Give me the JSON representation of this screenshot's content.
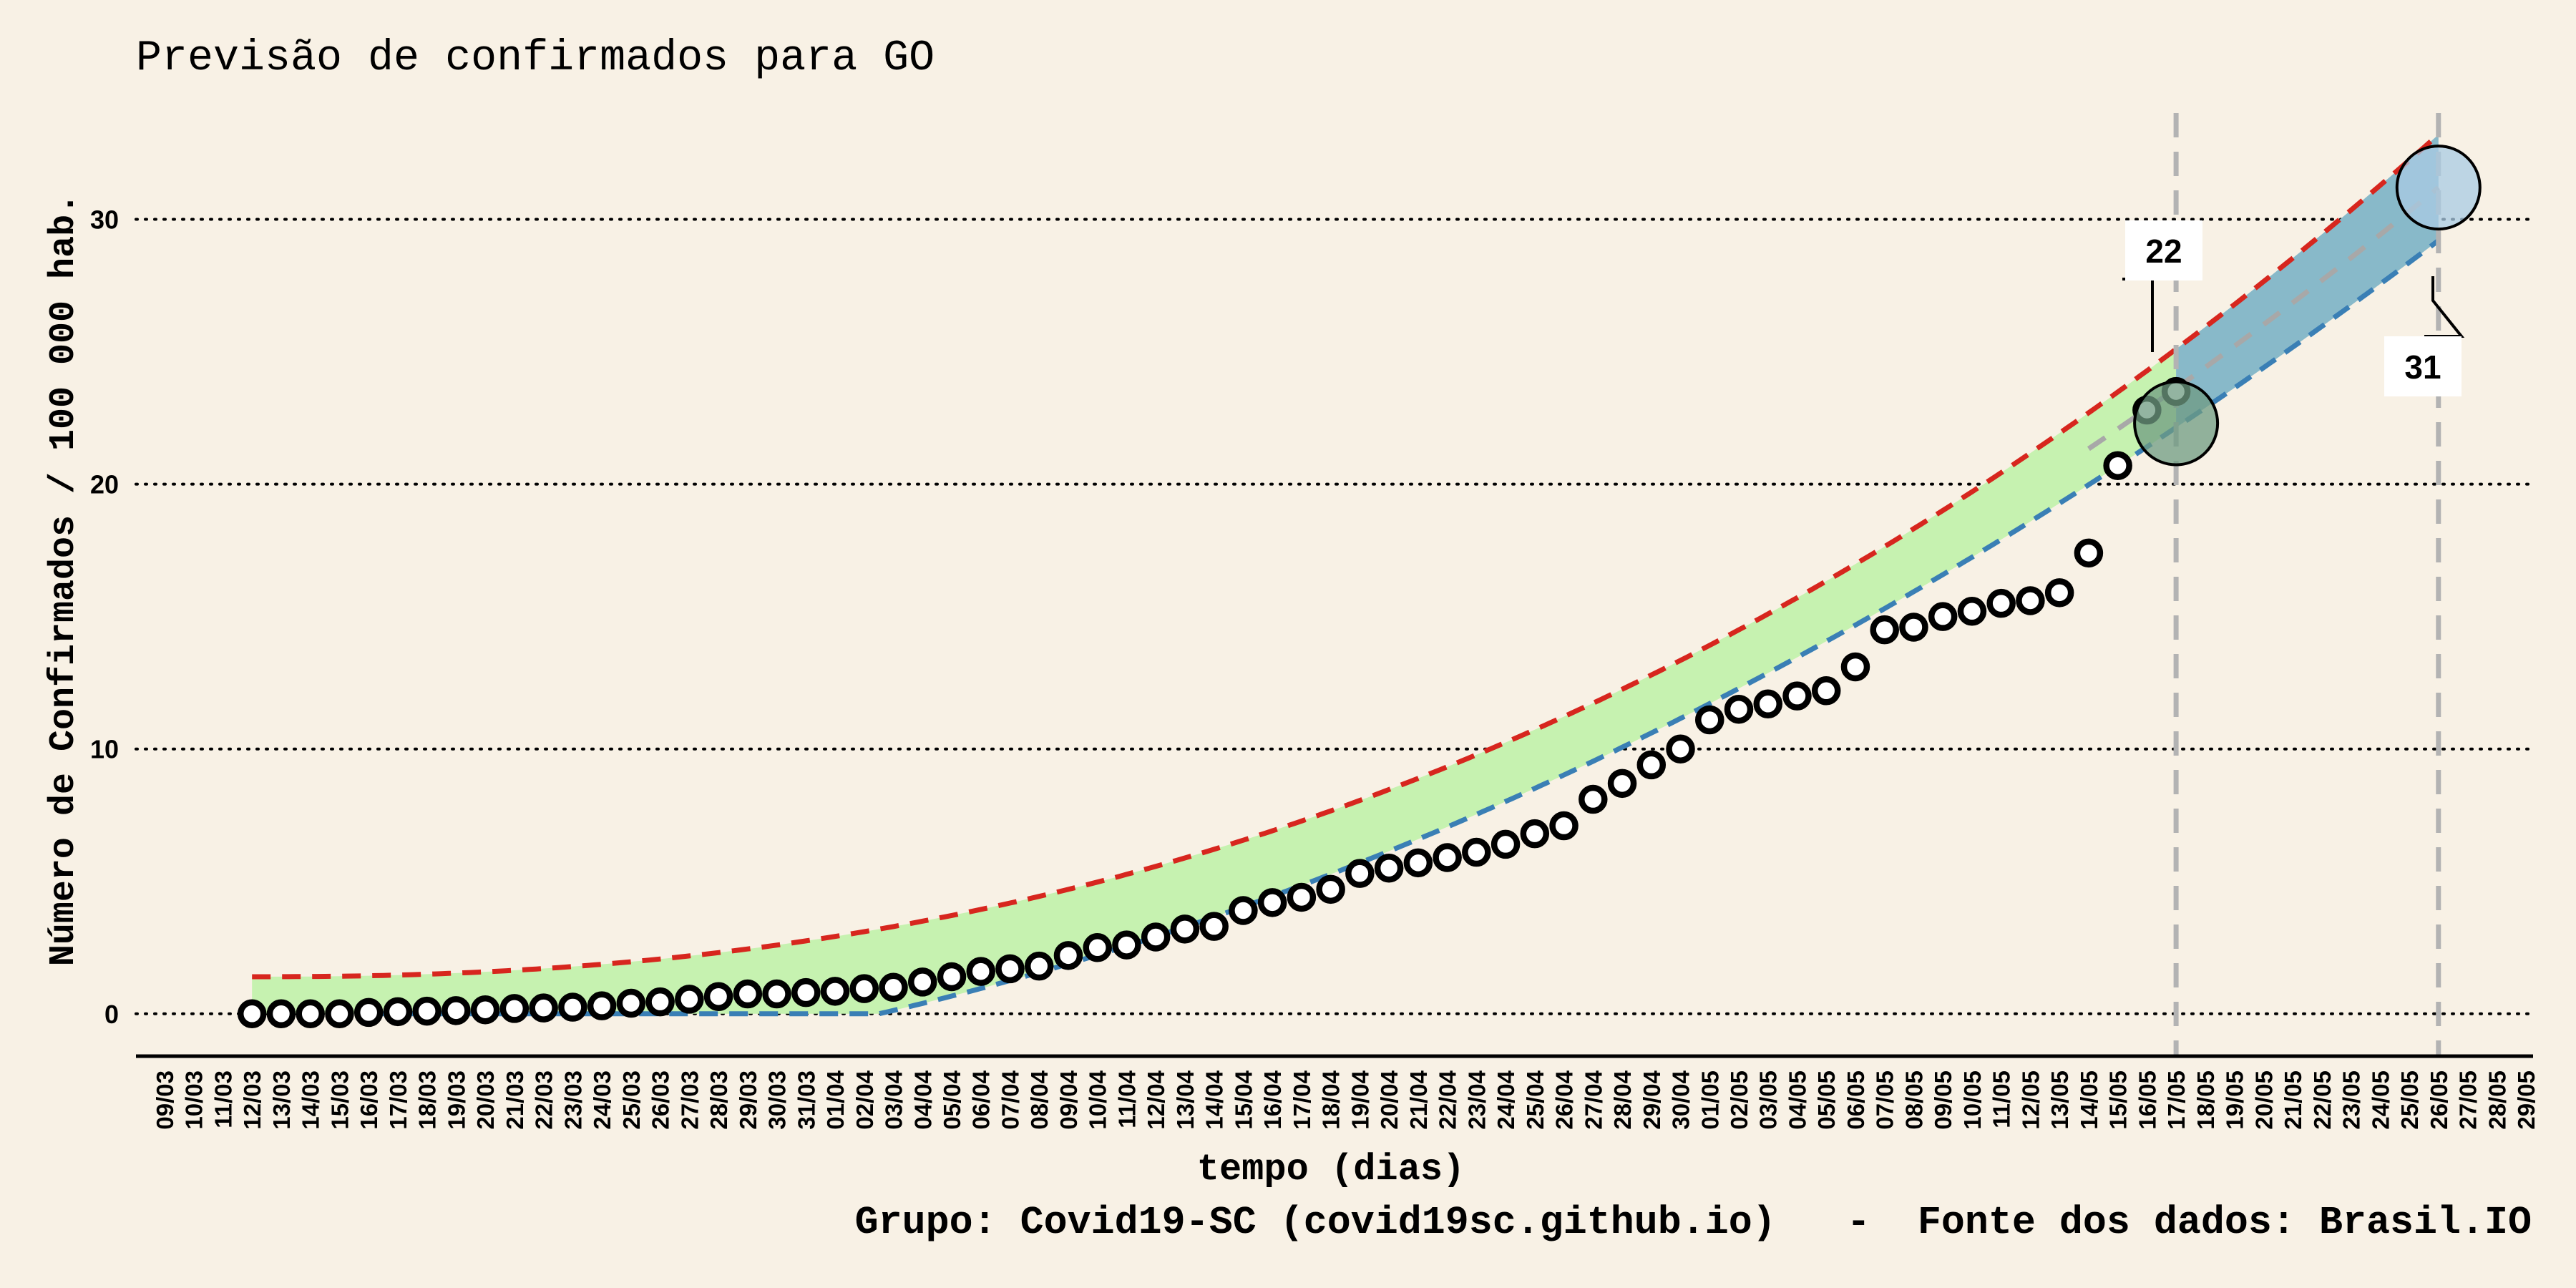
{
  "chart_data": {
    "type": "scatter",
    "title": "Previsão de confirmados para GO",
    "xlabel": "tempo (dias)",
    "ylabel": "Número de Confirmados / 100 000 hab.",
    "caption": "Grupo: Covid19-SC (covid19sc.github.io)   -  Fonte dos dados: Brasil.IO",
    "x_tick_labels": [
      "09/03",
      "10/03",
      "11/03",
      "12/03",
      "13/03",
      "14/03",
      "15/03",
      "16/03",
      "17/03",
      "18/03",
      "19/03",
      "20/03",
      "21/03",
      "22/03",
      "23/03",
      "24/03",
      "25/03",
      "26/03",
      "27/03",
      "28/03",
      "29/03",
      "30/03",
      "31/03",
      "01/04",
      "02/04",
      "03/04",
      "04/04",
      "05/04",
      "06/04",
      "07/04",
      "08/04",
      "09/04",
      "10/04",
      "11/04",
      "12/04",
      "13/04",
      "14/04",
      "15/04",
      "16/04",
      "17/04",
      "18/04",
      "19/04",
      "20/04",
      "21/04",
      "22/04",
      "23/04",
      "24/04",
      "25/04",
      "26/04",
      "27/04",
      "28/04",
      "29/04",
      "30/04",
      "01/05",
      "02/05",
      "03/05",
      "04/05",
      "05/05",
      "06/05",
      "07/05",
      "08/05",
      "09/05",
      "10/05",
      "11/05",
      "12/05",
      "13/05",
      "14/05",
      "15/05",
      "16/05",
      "17/05",
      "18/05",
      "19/05",
      "20/05",
      "21/05",
      "22/05",
      "23/05",
      "24/05",
      "25/05",
      "26/05",
      "27/05",
      "28/05",
      "29/05"
    ],
    "y_ticks": [
      0,
      10,
      20,
      30
    ],
    "ylim": [
      -1.6,
      34.5
    ],
    "grid": "horizontal dotted",
    "observed": {
      "start": "12/03",
      "values": [
        0.0,
        0.0,
        0.0,
        0.0,
        0.05,
        0.08,
        0.1,
        0.12,
        0.15,
        0.2,
        0.22,
        0.25,
        0.3,
        0.4,
        0.45,
        0.55,
        0.65,
        0.75,
        0.75,
        0.8,
        0.85,
        0.95,
        1.0,
        1.2,
        1.4,
        1.6,
        1.7,
        1.8,
        2.2,
        2.5,
        2.6,
        2.9,
        3.2,
        3.3,
        3.9,
        4.2,
        4.4,
        4.7,
        5.3,
        5.5,
        5.7,
        5.9,
        6.1,
        6.4,
        6.8,
        7.1,
        8.1,
        8.7,
        9.4,
        10.0,
        11.1,
        11.5,
        11.7,
        12.0,
        12.2,
        13.1,
        14.5,
        14.6,
        15.0,
        15.2,
        15.5,
        15.6,
        15.9,
        17.4,
        20.7,
        22.8,
        23.5
      ]
    },
    "forecast": {
      "upper": {
        "color": "#d7261e",
        "y_at_12_03": 1.4,
        "y_at_26_05": 33.2
      },
      "lower": {
        "color": "#3a7fb5",
        "y_at_26_05": 29.2
      },
      "mid_color": "#a8a8a8",
      "band_fill_before_17_05": "#c6f2b0",
      "band_fill_after_17_05": "#88b9c9"
    },
    "vlines": [
      "17/05",
      "26/05"
    ],
    "annotations": [
      {
        "x": "17/05",
        "y": 22.3,
        "label": "22",
        "marker_color": "#6f9b82"
      },
      {
        "x": "26/05",
        "y": 31.2,
        "label": "31",
        "marker_color": "#a9cbe3"
      }
    ]
  }
}
